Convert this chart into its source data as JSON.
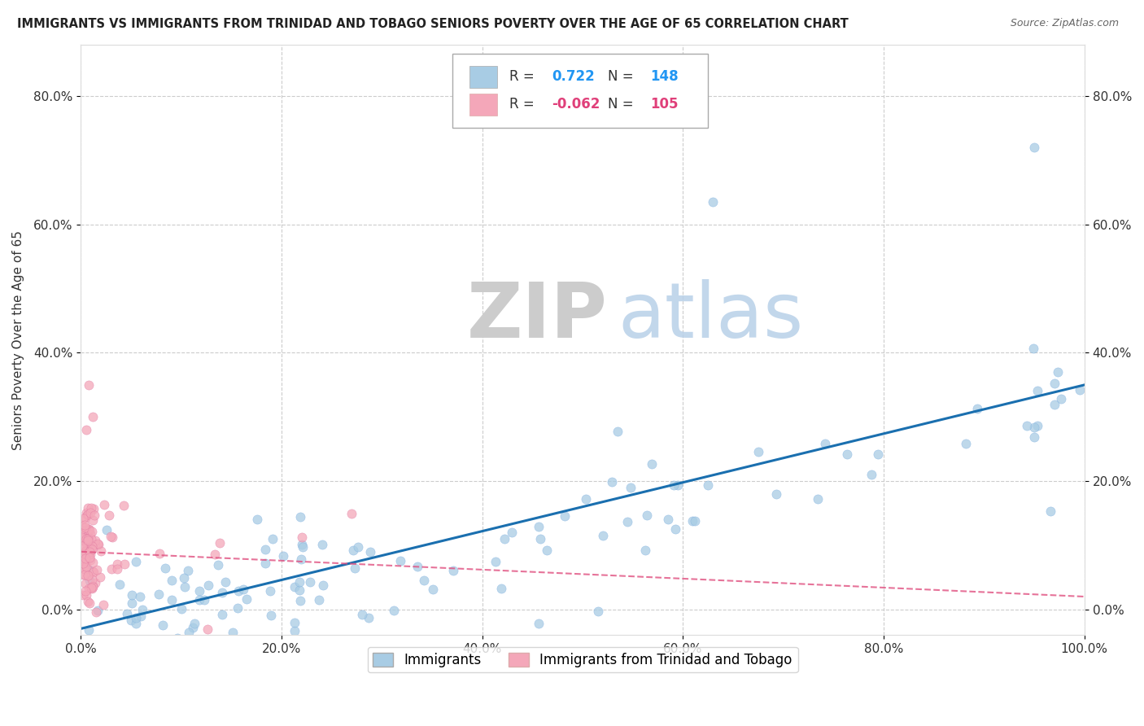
{
  "title": "IMMIGRANTS VS IMMIGRANTS FROM TRINIDAD AND TOBAGO SENIORS POVERTY OVER THE AGE OF 65 CORRELATION CHART",
  "source": "Source: ZipAtlas.com",
  "ylabel": "Seniors Poverty Over the Age of 65",
  "legend1_label": "Immigrants",
  "legend2_label": "Immigrants from Trinidad and Tobago",
  "r1": 0.722,
  "n1": 148,
  "r2": -0.062,
  "n2": 105,
  "color1": "#a8cce4",
  "color2": "#f4a7b9",
  "line1_color": "#1a6faf",
  "line2_color": "#e05080",
  "xlim": [
    0.0,
    1.0
  ],
  "ylim": [
    -0.04,
    0.88
  ],
  "xticks": [
    0.0,
    0.2,
    0.4,
    0.6,
    0.8,
    1.0
  ],
  "yticks": [
    0.0,
    0.2,
    0.4,
    0.6,
    0.8
  ],
  "xtick_labels": [
    "0.0%",
    "20.0%",
    "40.0%",
    "60.0%",
    "80.0%",
    "100.0%"
  ],
  "ytick_labels": [
    "0.0%",
    "20.0%",
    "40.0%",
    "60.0%",
    "80.0%"
  ],
  "background_color": "#ffffff",
  "watermark_zip": "ZIP",
  "watermark_atlas": "atlas"
}
